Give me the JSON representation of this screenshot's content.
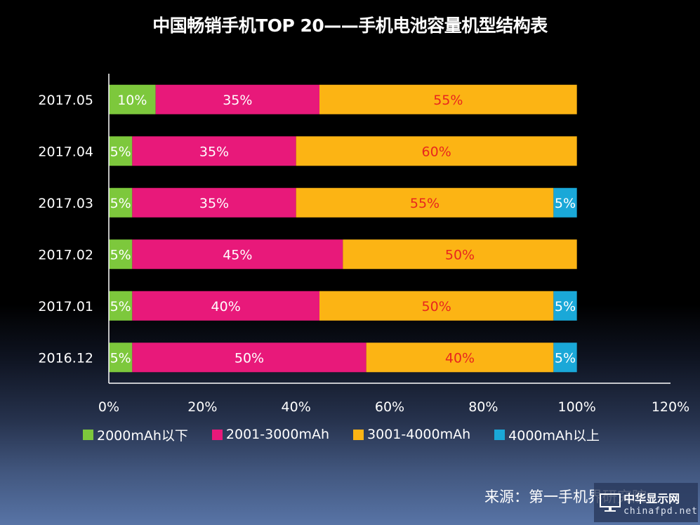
{
  "chart_data": {
    "type": "bar",
    "orientation": "horizontal",
    "stacked": true,
    "title": "中国畅销手机TOP 20——手机电池容量机型结构表",
    "xlabel": "",
    "ylabel": "",
    "xlim": [
      0,
      120
    ],
    "x_ticks": [
      "0%",
      "20%",
      "40%",
      "60%",
      "80%",
      "100%",
      "120%"
    ],
    "x_tick_values": [
      0,
      20,
      40,
      60,
      80,
      100,
      120
    ],
    "grid": false,
    "legend_position": "bottom",
    "categories": [
      "2017.05",
      "2017.04",
      "2017.03",
      "2017.02",
      "2017.01",
      "2016.12"
    ],
    "series": [
      {
        "name": "2000mAh以下",
        "color": "#7dc83c",
        "label_color": "#ffffff",
        "values": [
          10,
          5,
          5,
          5,
          5,
          5
        ]
      },
      {
        "name": "2001-3000mAh",
        "color": "#e8197a",
        "label_color": "#ffffff",
        "values": [
          35,
          35,
          35,
          45,
          40,
          50
        ]
      },
      {
        "name": "3001-4000mAh",
        "color": "#fcb414",
        "label_color": "#e8261e",
        "values": [
          55,
          60,
          55,
          50,
          50,
          40
        ]
      },
      {
        "name": "4000mAh以上",
        "color": "#1aa8d8",
        "label_color": "#ffffff",
        "values": [
          0,
          0,
          5,
          0,
          5,
          5
        ]
      }
    ]
  },
  "source": "来源：第一手机界研究院",
  "watermark": {
    "cn": "中华显示网",
    "en": "chinafpd.net",
    "icon": "monitor-icon"
  }
}
